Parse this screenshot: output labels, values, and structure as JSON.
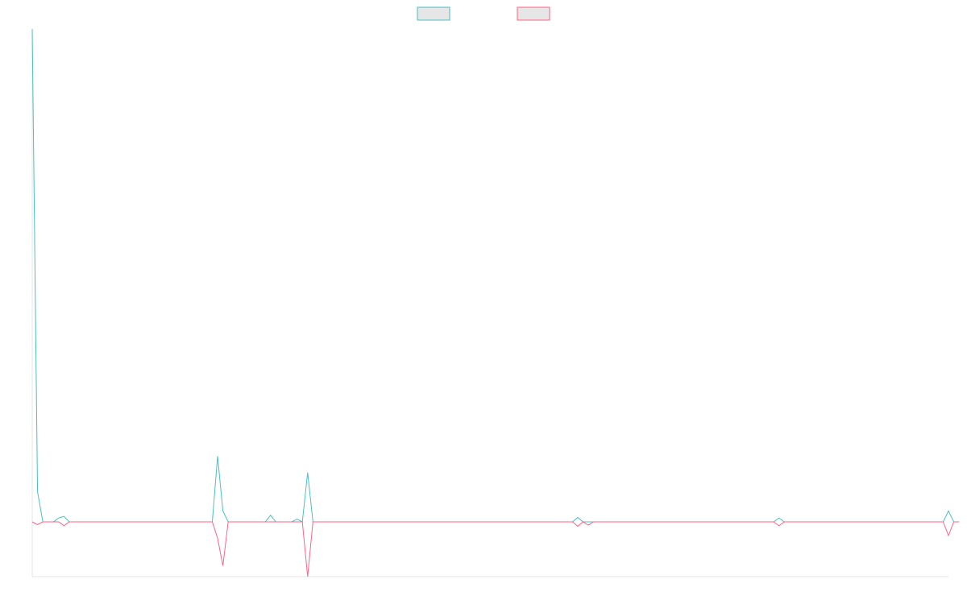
{
  "chart_data": {
    "type": "line",
    "title": "",
    "xlabel": "",
    "ylabel": "",
    "legend": {
      "placement": "top-center",
      "show_labels": false
    },
    "grid": false,
    "axes": {
      "show_left": true,
      "show_bottom": true
    },
    "xlim": [
      0,
      173
    ],
    "ylim": [
      -1.0,
      9.0
    ],
    "series": [
      {
        "color": "#4bc0c0",
        "fill": "#e6e6e6",
        "points": [
          [
            0,
            9.0
          ],
          [
            1,
            0.55
          ],
          [
            2,
            0.0
          ],
          [
            3,
            0.0
          ],
          [
            4,
            0.0
          ],
          [
            5,
            0.07
          ],
          [
            6,
            0.1
          ],
          [
            7,
            0.0
          ],
          [
            34,
            0.0
          ],
          [
            35,
            1.2
          ],
          [
            36,
            0.2
          ],
          [
            37,
            0.0
          ],
          [
            44,
            0.0
          ],
          [
            45,
            0.12
          ],
          [
            46,
            0.0
          ],
          [
            49,
            0.0
          ],
          [
            50,
            0.05
          ],
          [
            51,
            0.0
          ],
          [
            52,
            0.9
          ],
          [
            53,
            0.0
          ],
          [
            102,
            0.0
          ],
          [
            103,
            0.08
          ],
          [
            104,
            0.0
          ],
          [
            105,
            0.0
          ],
          [
            140,
            0.0
          ],
          [
            141,
            0.07
          ],
          [
            142,
            0.0
          ],
          [
            172,
            0.0
          ],
          [
            173,
            0.2
          ],
          [
            174,
            0.0
          ],
          [
            175,
            0.0
          ]
        ]
      },
      {
        "color": "#ff6384",
        "fill": "#e6e6e6",
        "points": [
          [
            0,
            0.0
          ],
          [
            1,
            -0.05
          ],
          [
            2,
            0.0
          ],
          [
            3,
            0.0
          ],
          [
            4,
            0.0
          ],
          [
            5,
            0.0
          ],
          [
            6,
            -0.07
          ],
          [
            7,
            0.0
          ],
          [
            34,
            0.0
          ],
          [
            35,
            -0.3
          ],
          [
            36,
            -0.8
          ],
          [
            37,
            0.0
          ],
          [
            44,
            0.0
          ],
          [
            45,
            0.0
          ],
          [
            46,
            0.0
          ],
          [
            49,
            0.0
          ],
          [
            50,
            0.0
          ],
          [
            51,
            0.0
          ],
          [
            52,
            -1.0
          ],
          [
            53,
            0.0
          ],
          [
            102,
            0.0
          ],
          [
            103,
            -0.08
          ],
          [
            104,
            0.0
          ],
          [
            105,
            -0.06
          ],
          [
            106,
            0.0
          ],
          [
            140,
            0.0
          ],
          [
            141,
            -0.07
          ],
          [
            142,
            0.0
          ],
          [
            172,
            0.0
          ],
          [
            173,
            -0.25
          ],
          [
            174,
            0.0
          ],
          [
            175,
            0.0
          ]
        ]
      }
    ]
  }
}
